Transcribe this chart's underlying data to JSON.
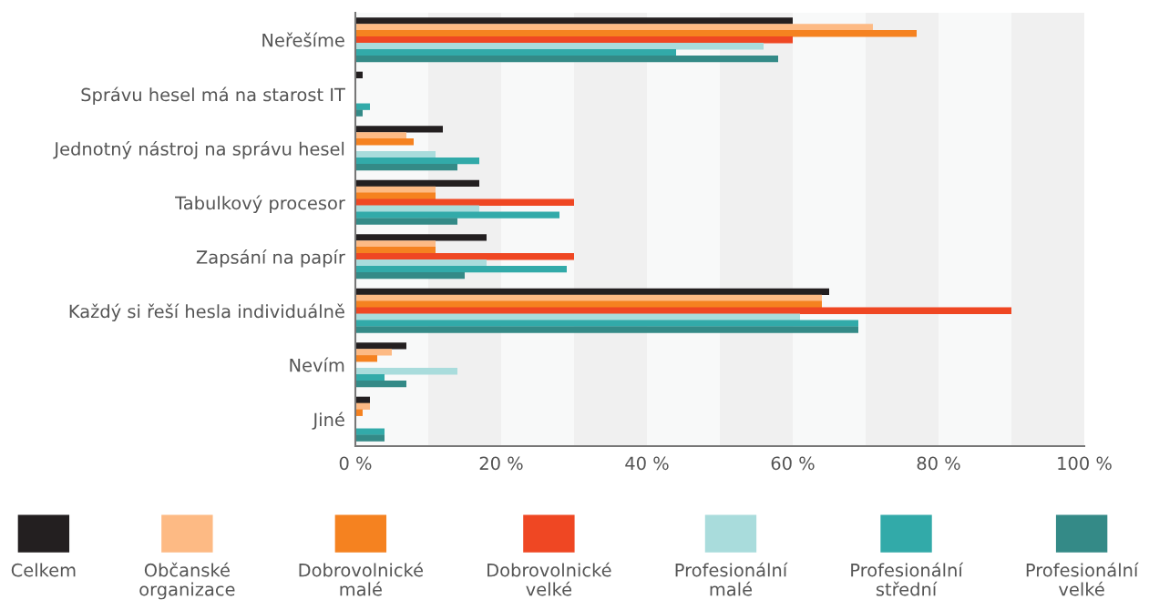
{
  "chart_data": {
    "type": "bar",
    "orientation": "horizontal",
    "categories": [
      "Neřešíme",
      "Správu hesel má na starost IT",
      "Jednotný nástroj na správu hesel",
      "Tabulkový procesor",
      "Zapsání na papír",
      "Každý si řeší hesla individuálně",
      "Nevím",
      "Jiné"
    ],
    "series": [
      {
        "name": "Celkem",
        "color": "#231f20",
        "values": [
          60,
          1,
          12,
          17,
          18,
          65,
          7,
          2
        ]
      },
      {
        "name": "Občanské\norganizace",
        "color": "#fdba84",
        "values": [
          71,
          0,
          7,
          11,
          11,
          64,
          5,
          2
        ]
      },
      {
        "name": "Dobrovolnické\nmalé",
        "color": "#f58220",
        "values": [
          77,
          0,
          8,
          11,
          11,
          64,
          3,
          1
        ]
      },
      {
        "name": "Dobrovolnické\nvelké",
        "color": "#ef4723",
        "values": [
          60,
          0,
          0,
          30,
          30,
          90,
          0,
          0
        ]
      },
      {
        "name": "Profesionální\nmalé",
        "color": "#a9dcdc",
        "values": [
          56,
          0,
          11,
          17,
          18,
          61,
          14,
          0
        ]
      },
      {
        "name": "Profesionální\nstřední",
        "color": "#32aaa9",
        "values": [
          44,
          2,
          17,
          28,
          29,
          69,
          4,
          4
        ]
      },
      {
        "name": "Profesionální\nvelké",
        "color": "#348a87",
        "values": [
          58,
          1,
          14,
          14,
          15,
          69,
          7,
          4
        ]
      }
    ],
    "xlim": [
      0,
      100
    ],
    "xticks": [
      {
        "value": 0,
        "label": "0 %"
      },
      {
        "value": 20,
        "label": "20 %"
      },
      {
        "value": 40,
        "label": "40 %"
      },
      {
        "value": 60,
        "label": "60 %"
      },
      {
        "value": 80,
        "label": "80 %"
      },
      {
        "value": 100,
        "label": "100 %"
      }
    ],
    "bands": [
      {
        "axis": "x",
        "from": 0,
        "to": 10,
        "color": "#f8f9f9"
      },
      {
        "axis": "x",
        "from": 10,
        "to": 20,
        "color": "#f0f0f0"
      },
      {
        "axis": "x",
        "from": 20,
        "to": 30,
        "color": "#f8f9f9"
      },
      {
        "axis": "x",
        "from": 30,
        "to": 40,
        "color": "#f0f0f0"
      },
      {
        "axis": "x",
        "from": 40,
        "to": 50,
        "color": "#f8f9f9"
      },
      {
        "axis": "x",
        "from": 50,
        "to": 60,
        "color": "#f0f0f0"
      },
      {
        "axis": "x",
        "from": 60,
        "to": 70,
        "color": "#f8f9f9"
      },
      {
        "axis": "x",
        "from": 70,
        "to": 80,
        "color": "#f0f0f0"
      },
      {
        "axis": "x",
        "from": 80,
        "to": 90,
        "color": "#f8f9f9"
      },
      {
        "axis": "x",
        "from": 90,
        "to": 100,
        "color": "#f0f0f0"
      }
    ],
    "grid": false,
    "legend": "bottom"
  }
}
